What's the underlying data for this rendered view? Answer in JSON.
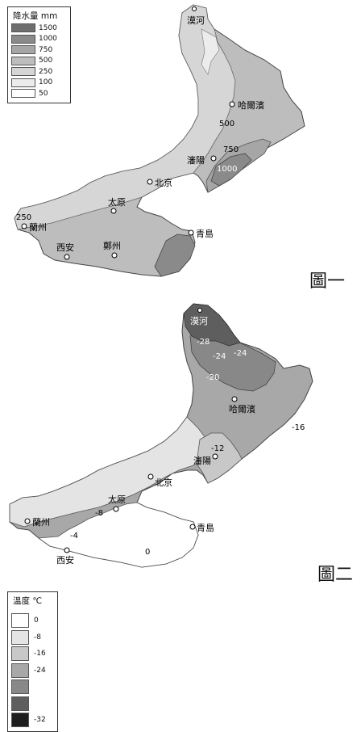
{
  "figure1": {
    "caption": "圖一",
    "legend": {
      "title": "降水量  mm",
      "items": [
        {
          "label": "1500",
          "color": "#6e6e6e"
        },
        {
          "label": "1000",
          "color": "#8a8a8a"
        },
        {
          "label": "750",
          "color": "#a6a6a6"
        },
        {
          "label": "500",
          "color": "#bdbdbd"
        },
        {
          "label": "250",
          "color": "#d6d6d6"
        },
        {
          "label": "100",
          "color": "#ececec"
        },
        {
          "label": "50",
          "color": "#ffffff"
        }
      ]
    },
    "cities": {
      "mohe": "漠河",
      "harbin": "哈爾濱",
      "shenyang": "瀋陽",
      "beijing": "北京",
      "taiyuan": "太原",
      "qingdao": "青島",
      "lanzhou": "蘭州",
      "xian": "西安",
      "zhengzhou": "鄭州"
    },
    "isolines": {
      "v500": "500",
      "v750": "750",
      "v1000": "1000",
      "v250": "250"
    }
  },
  "figure2": {
    "caption": "圖二",
    "legend": {
      "title": "溫度 ℃",
      "items": [
        {
          "label": "0",
          "color": "#ffffff"
        },
        {
          "label": "-8",
          "color": "#e4e4e4"
        },
        {
          "label": "-16",
          "color": "#c8c8c8"
        },
        {
          "label": "-24",
          "color": "#a8a8a8"
        },
        {
          "label": "",
          "color": "#888888"
        },
        {
          "label": "",
          "color": "#5e5e5e"
        },
        {
          "label": "-32",
          "color": "#1e1e1e"
        }
      ]
    },
    "cities": {
      "mohe": "漠河",
      "harbin": "哈爾濱",
      "shenyang": "瀋陽",
      "beijing": "北京",
      "taiyuan": "太原",
      "qingdao": "青島",
      "lanzhou": "蘭州",
      "xian": "西安"
    },
    "isolines": {
      "m28": "-28",
      "m24a": "-24",
      "m24b": "-24",
      "m20": "-20",
      "m16": "-16",
      "m12": "-12",
      "m8": "-8",
      "m4": "-4",
      "z0": "0"
    }
  }
}
